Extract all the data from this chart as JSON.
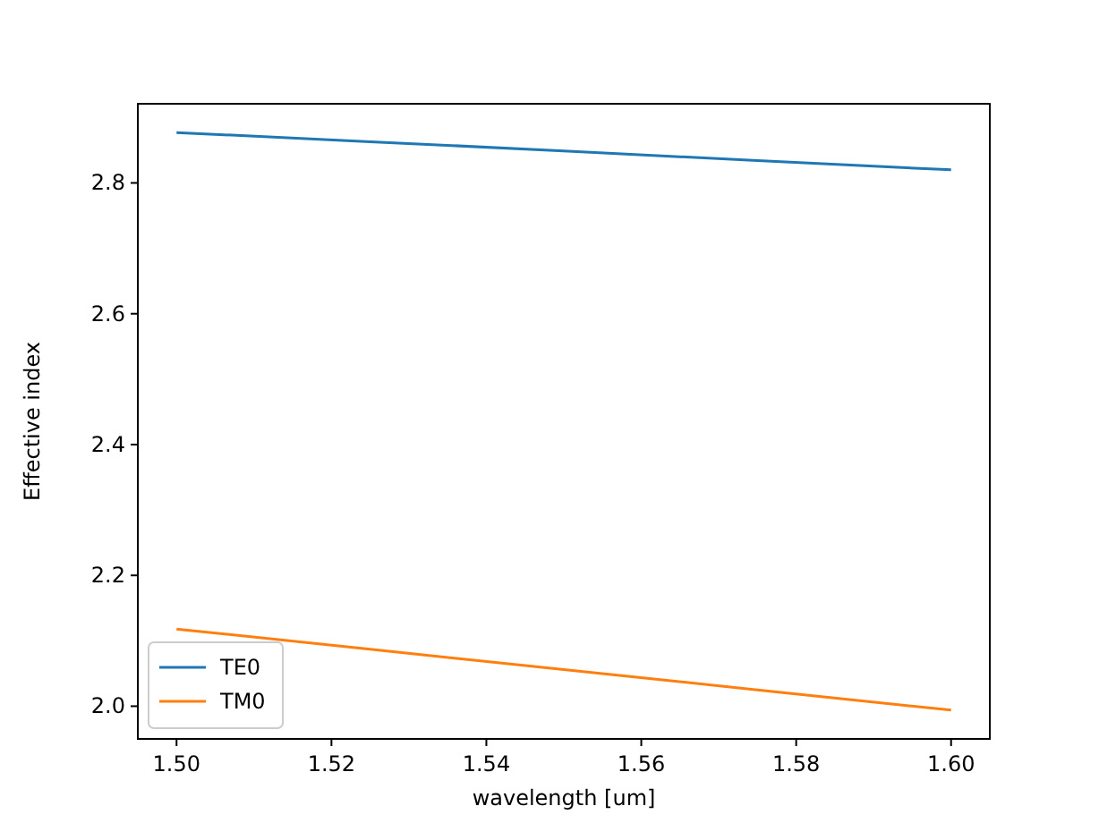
{
  "chart_data": {
    "type": "line",
    "xlabel": "wavelength [um]",
    "ylabel": "Effective index",
    "x": [
      1.5,
      1.525,
      1.55,
      1.575,
      1.6
    ],
    "series": [
      {
        "name": "TE0",
        "color": "#1f77b4",
        "values": [
          2.877,
          2.863,
          2.849,
          2.834,
          2.82
        ]
      },
      {
        "name": "TM0",
        "color": "#ff7f0e",
        "values": [
          2.118,
          2.087,
          2.056,
          2.025,
          1.994
        ]
      }
    ],
    "xlim": [
      1.495,
      1.605
    ],
    "xticks": [
      {
        "value": 1.5,
        "label": "1.50"
      },
      {
        "value": 1.52,
        "label": "1.52"
      },
      {
        "value": 1.54,
        "label": "1.54"
      },
      {
        "value": 1.56,
        "label": "1.56"
      },
      {
        "value": 1.58,
        "label": "1.58"
      },
      {
        "value": 1.6,
        "label": "1.60"
      }
    ],
    "ylim": [
      1.95,
      2.921
    ],
    "yticks": [
      {
        "value": 2.0,
        "label": "2.0"
      },
      {
        "value": 2.2,
        "label": "2.2"
      },
      {
        "value": 2.4,
        "label": "2.4"
      },
      {
        "value": 2.6,
        "label": "2.6"
      },
      {
        "value": 2.8,
        "label": "2.8"
      }
    ],
    "legend": "bottom left",
    "grid": false,
    "marker": "none",
    "line_style": "solid"
  }
}
